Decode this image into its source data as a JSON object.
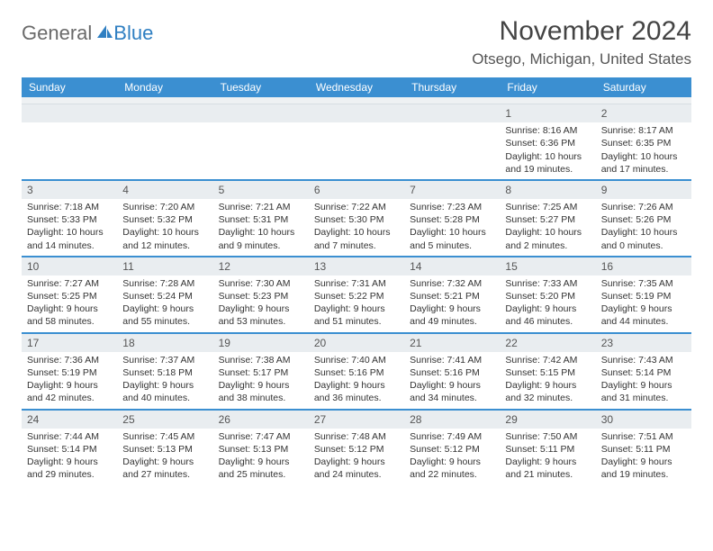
{
  "logo": {
    "general": "General",
    "blue": "Blue"
  },
  "title": "November 2024",
  "location": "Otsego, Michigan, United States",
  "colors": {
    "header_bg": "#3b8fd1",
    "header_text": "#ffffff",
    "row_divider": "#3b8fd1",
    "daynum_bg": "#e9edf0",
    "logo_gray": "#6a6a6a",
    "logo_blue": "#2f7fc2"
  },
  "weekdays": [
    "Sunday",
    "Monday",
    "Tuesday",
    "Wednesday",
    "Thursday",
    "Friday",
    "Saturday"
  ],
  "weeks": [
    [
      {
        "n": "",
        "sr": "",
        "ss": "",
        "dl": ""
      },
      {
        "n": "",
        "sr": "",
        "ss": "",
        "dl": ""
      },
      {
        "n": "",
        "sr": "",
        "ss": "",
        "dl": ""
      },
      {
        "n": "",
        "sr": "",
        "ss": "",
        "dl": ""
      },
      {
        "n": "",
        "sr": "",
        "ss": "",
        "dl": ""
      },
      {
        "n": "1",
        "sr": "Sunrise: 8:16 AM",
        "ss": "Sunset: 6:36 PM",
        "dl": "Daylight: 10 hours and 19 minutes."
      },
      {
        "n": "2",
        "sr": "Sunrise: 8:17 AM",
        "ss": "Sunset: 6:35 PM",
        "dl": "Daylight: 10 hours and 17 minutes."
      }
    ],
    [
      {
        "n": "3",
        "sr": "Sunrise: 7:18 AM",
        "ss": "Sunset: 5:33 PM",
        "dl": "Daylight: 10 hours and 14 minutes."
      },
      {
        "n": "4",
        "sr": "Sunrise: 7:20 AM",
        "ss": "Sunset: 5:32 PM",
        "dl": "Daylight: 10 hours and 12 minutes."
      },
      {
        "n": "5",
        "sr": "Sunrise: 7:21 AM",
        "ss": "Sunset: 5:31 PM",
        "dl": "Daylight: 10 hours and 9 minutes."
      },
      {
        "n": "6",
        "sr": "Sunrise: 7:22 AM",
        "ss": "Sunset: 5:30 PM",
        "dl": "Daylight: 10 hours and 7 minutes."
      },
      {
        "n": "7",
        "sr": "Sunrise: 7:23 AM",
        "ss": "Sunset: 5:28 PM",
        "dl": "Daylight: 10 hours and 5 minutes."
      },
      {
        "n": "8",
        "sr": "Sunrise: 7:25 AM",
        "ss": "Sunset: 5:27 PM",
        "dl": "Daylight: 10 hours and 2 minutes."
      },
      {
        "n": "9",
        "sr": "Sunrise: 7:26 AM",
        "ss": "Sunset: 5:26 PM",
        "dl": "Daylight: 10 hours and 0 minutes."
      }
    ],
    [
      {
        "n": "10",
        "sr": "Sunrise: 7:27 AM",
        "ss": "Sunset: 5:25 PM",
        "dl": "Daylight: 9 hours and 58 minutes."
      },
      {
        "n": "11",
        "sr": "Sunrise: 7:28 AM",
        "ss": "Sunset: 5:24 PM",
        "dl": "Daylight: 9 hours and 55 minutes."
      },
      {
        "n": "12",
        "sr": "Sunrise: 7:30 AM",
        "ss": "Sunset: 5:23 PM",
        "dl": "Daylight: 9 hours and 53 minutes."
      },
      {
        "n": "13",
        "sr": "Sunrise: 7:31 AM",
        "ss": "Sunset: 5:22 PM",
        "dl": "Daylight: 9 hours and 51 minutes."
      },
      {
        "n": "14",
        "sr": "Sunrise: 7:32 AM",
        "ss": "Sunset: 5:21 PM",
        "dl": "Daylight: 9 hours and 49 minutes."
      },
      {
        "n": "15",
        "sr": "Sunrise: 7:33 AM",
        "ss": "Sunset: 5:20 PM",
        "dl": "Daylight: 9 hours and 46 minutes."
      },
      {
        "n": "16",
        "sr": "Sunrise: 7:35 AM",
        "ss": "Sunset: 5:19 PM",
        "dl": "Daylight: 9 hours and 44 minutes."
      }
    ],
    [
      {
        "n": "17",
        "sr": "Sunrise: 7:36 AM",
        "ss": "Sunset: 5:19 PM",
        "dl": "Daylight: 9 hours and 42 minutes."
      },
      {
        "n": "18",
        "sr": "Sunrise: 7:37 AM",
        "ss": "Sunset: 5:18 PM",
        "dl": "Daylight: 9 hours and 40 minutes."
      },
      {
        "n": "19",
        "sr": "Sunrise: 7:38 AM",
        "ss": "Sunset: 5:17 PM",
        "dl": "Daylight: 9 hours and 38 minutes."
      },
      {
        "n": "20",
        "sr": "Sunrise: 7:40 AM",
        "ss": "Sunset: 5:16 PM",
        "dl": "Daylight: 9 hours and 36 minutes."
      },
      {
        "n": "21",
        "sr": "Sunrise: 7:41 AM",
        "ss": "Sunset: 5:16 PM",
        "dl": "Daylight: 9 hours and 34 minutes."
      },
      {
        "n": "22",
        "sr": "Sunrise: 7:42 AM",
        "ss": "Sunset: 5:15 PM",
        "dl": "Daylight: 9 hours and 32 minutes."
      },
      {
        "n": "23",
        "sr": "Sunrise: 7:43 AM",
        "ss": "Sunset: 5:14 PM",
        "dl": "Daylight: 9 hours and 31 minutes."
      }
    ],
    [
      {
        "n": "24",
        "sr": "Sunrise: 7:44 AM",
        "ss": "Sunset: 5:14 PM",
        "dl": "Daylight: 9 hours and 29 minutes."
      },
      {
        "n": "25",
        "sr": "Sunrise: 7:45 AM",
        "ss": "Sunset: 5:13 PM",
        "dl": "Daylight: 9 hours and 27 minutes."
      },
      {
        "n": "26",
        "sr": "Sunrise: 7:47 AM",
        "ss": "Sunset: 5:13 PM",
        "dl": "Daylight: 9 hours and 25 minutes."
      },
      {
        "n": "27",
        "sr": "Sunrise: 7:48 AM",
        "ss": "Sunset: 5:12 PM",
        "dl": "Daylight: 9 hours and 24 minutes."
      },
      {
        "n": "28",
        "sr": "Sunrise: 7:49 AM",
        "ss": "Sunset: 5:12 PM",
        "dl": "Daylight: 9 hours and 22 minutes."
      },
      {
        "n": "29",
        "sr": "Sunrise: 7:50 AM",
        "ss": "Sunset: 5:11 PM",
        "dl": "Daylight: 9 hours and 21 minutes."
      },
      {
        "n": "30",
        "sr": "Sunrise: 7:51 AM",
        "ss": "Sunset: 5:11 PM",
        "dl": "Daylight: 9 hours and 19 minutes."
      }
    ]
  ]
}
